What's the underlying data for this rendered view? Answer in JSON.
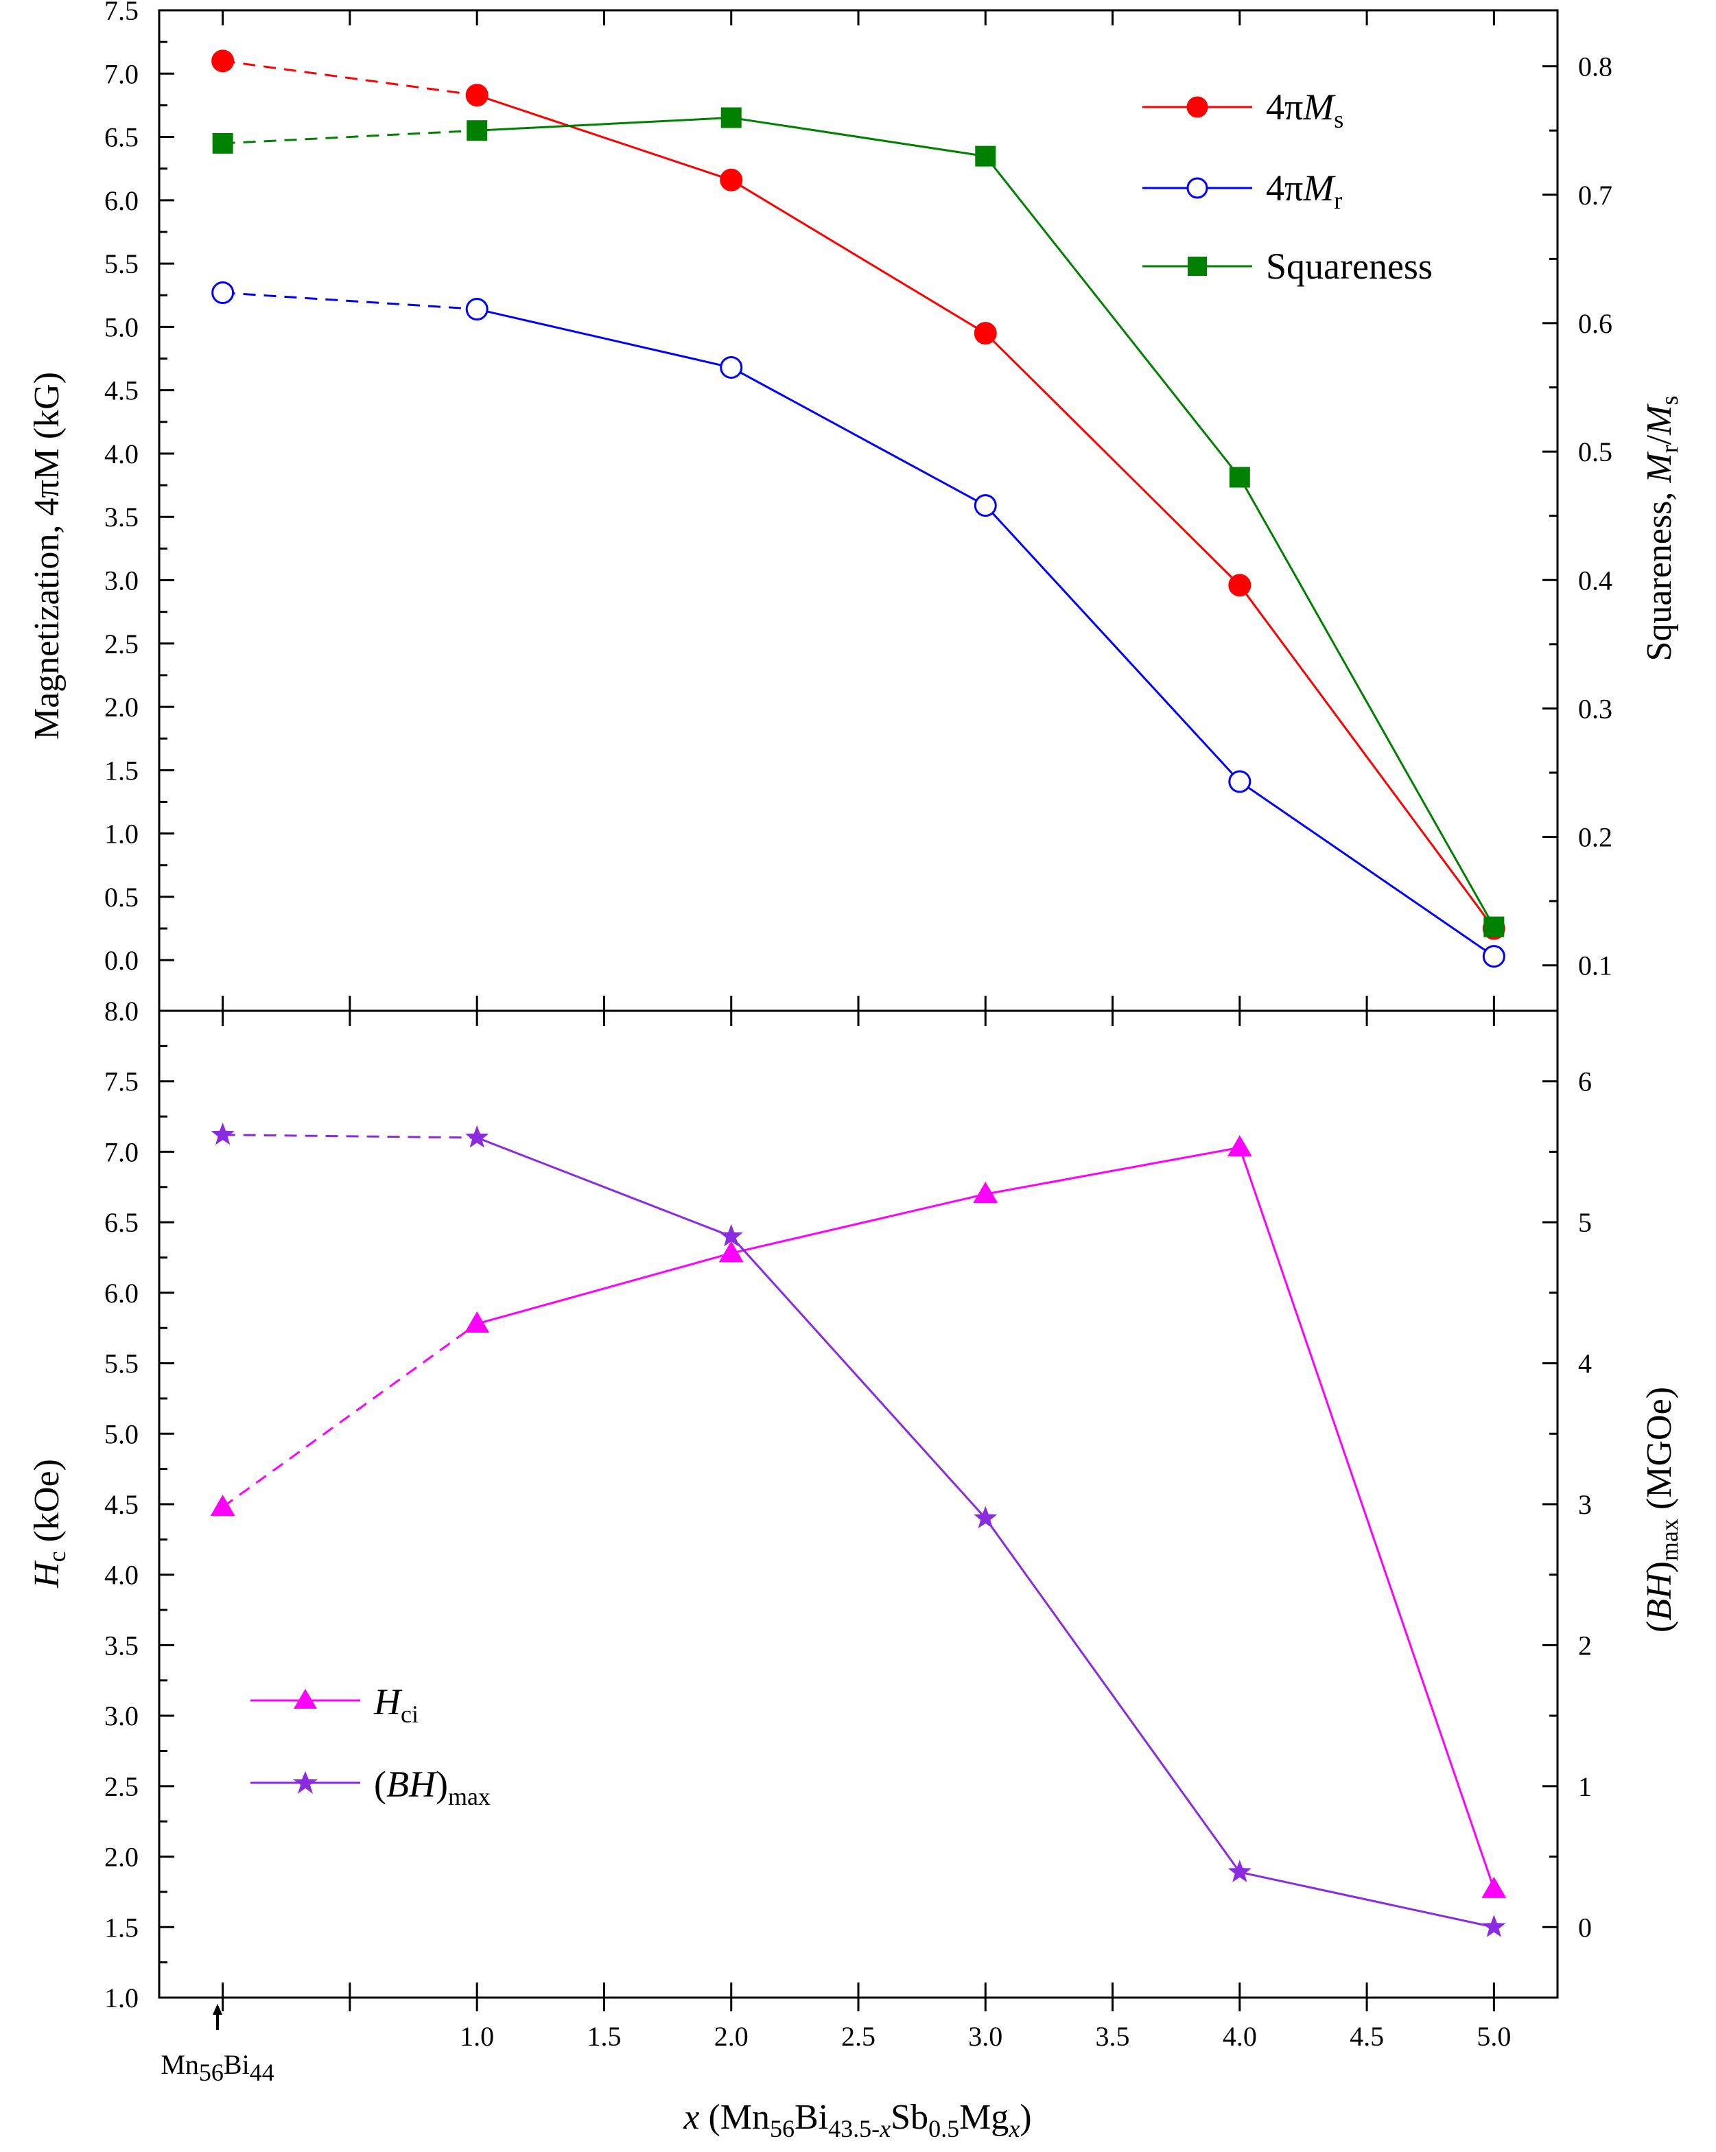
{
  "chart_data": [
    {
      "type": "line",
      "panel": "top",
      "x_categories": [
        "0",
        "1.0",
        "2.0",
        "3.0",
        "4.0",
        "5.0"
      ],
      "x_note": "first point corresponds to Mn56Bi44 (undoped); dashed segment joins it to x = 1.0",
      "xlim": [
        -0.25,
        5.25
      ],
      "left_axis": {
        "label_pre": "Magnetization, 4",
        "label_pi": "π",
        "label_post": "M (kG)",
        "ylim": [
          -0.4,
          7.5
        ],
        "ticks": [
          "0.0",
          "0.5",
          "1.0",
          "1.5",
          "2.0",
          "2.5",
          "3.0",
          "3.5",
          "4.0",
          "4.5",
          "5.0",
          "5.5",
          "6.0",
          "6.5",
          "7.0",
          "7.5"
        ]
      },
      "right_axis": {
        "label_pre": "Squareness, ",
        "label_M1": "M",
        "label_sub1": "r",
        "label_slash": "/",
        "label_M2": "M",
        "label_sub2": "s",
        "ylim": [
          0.0646,
          0.8436
        ],
        "ticks": [
          "0.1",
          "0.2",
          "0.3",
          "0.4",
          "0.5",
          "0.6",
          "0.7",
          "0.8"
        ]
      },
      "series": [
        {
          "name": "4πMs",
          "legend_main": "4π",
          "legend_italic": "M",
          "legend_sub": "s",
          "axis": "left",
          "color": "#ff0000",
          "marker": "circle-filled",
          "values": [
            7.1,
            6.83,
            6.16,
            4.95,
            2.96,
            0.25
          ]
        },
        {
          "name": "4πMr",
          "legend_main": "4π",
          "legend_italic": "M",
          "legend_sub": "r",
          "axis": "left",
          "color": "#0000ff",
          "marker": "circle-open",
          "values": [
            5.27,
            5.14,
            4.68,
            3.59,
            1.41,
            0.03
          ]
        },
        {
          "name": "Squareness",
          "legend_main": "Squareness",
          "legend_italic": "",
          "legend_sub": "",
          "axis": "right",
          "color": "#008000",
          "marker": "square-filled",
          "values": [
            0.74,
            0.75,
            0.76,
            0.73,
            0.48,
            0.13
          ]
        }
      ],
      "legend_position": "top-right"
    },
    {
      "type": "line",
      "panel": "bottom",
      "x_categories": [
        "0",
        "1.0",
        "2.0",
        "3.0",
        "4.0",
        "5.0"
      ],
      "xlim": [
        -0.25,
        5.25
      ],
      "left_axis": {
        "label_italic": "H",
        "label_sub": "c",
        "label_post": " (kOe)",
        "ylim": [
          1.0,
          8.0
        ],
        "ticks": [
          "1.0",
          "1.5",
          "2.0",
          "2.5",
          "3.0",
          "3.5",
          "4.0",
          "4.5",
          "5.0",
          "5.5",
          "6.0",
          "6.5",
          "7.0",
          "7.5",
          "8.0"
        ]
      },
      "right_axis": {
        "label_pre": "(",
        "label_italic": "BH",
        "label_close": ")",
        "label_sub": "max",
        "label_post": " (MGOe)",
        "ylim": [
          -0.5,
          6.5
        ],
        "ticks": [
          "0",
          "1",
          "2",
          "3",
          "4",
          "5",
          "6"
        ]
      },
      "series": [
        {
          "name": "Hci",
          "legend_italic": "H",
          "legend_sub": "ci",
          "axis": "left",
          "color": "#ff00ff",
          "marker": "triangle-filled",
          "values": [
            4.48,
            5.78,
            6.28,
            6.7,
            7.03,
            1.77
          ]
        },
        {
          "name": "(BH)max",
          "legend_pre": "(",
          "legend_italic": "BH",
          "legend_close": ")",
          "legend_sub": "max",
          "axis": "right",
          "color": "#8a2be2",
          "marker": "star-filled",
          "values": [
            5.62,
            5.6,
            4.9,
            2.9,
            0.39,
            0.0
          ]
        }
      ],
      "legend_position": "bottom-left"
    }
  ],
  "x_axis": {
    "ticks": [
      "1.0",
      "1.5",
      "2.0",
      "2.5",
      "3.0",
      "3.5",
      "4.0",
      "4.5",
      "5.0"
    ],
    "special_label_base1": "Mn",
    "special_label_sub1": "56",
    "special_label_base2": "Bi",
    "special_label_sub2": "44",
    "label_x": "x",
    "label_open": " (Mn",
    "label_sub_mn": "56",
    "label_bi": "Bi",
    "label_sub_bi": "43.5-",
    "label_sub_bi_x": "x",
    "label_sb": "Sb",
    "label_sub_sb": "0.5",
    "label_mg": "Mg",
    "label_sub_mg_x": "x",
    "label_close": ")"
  }
}
